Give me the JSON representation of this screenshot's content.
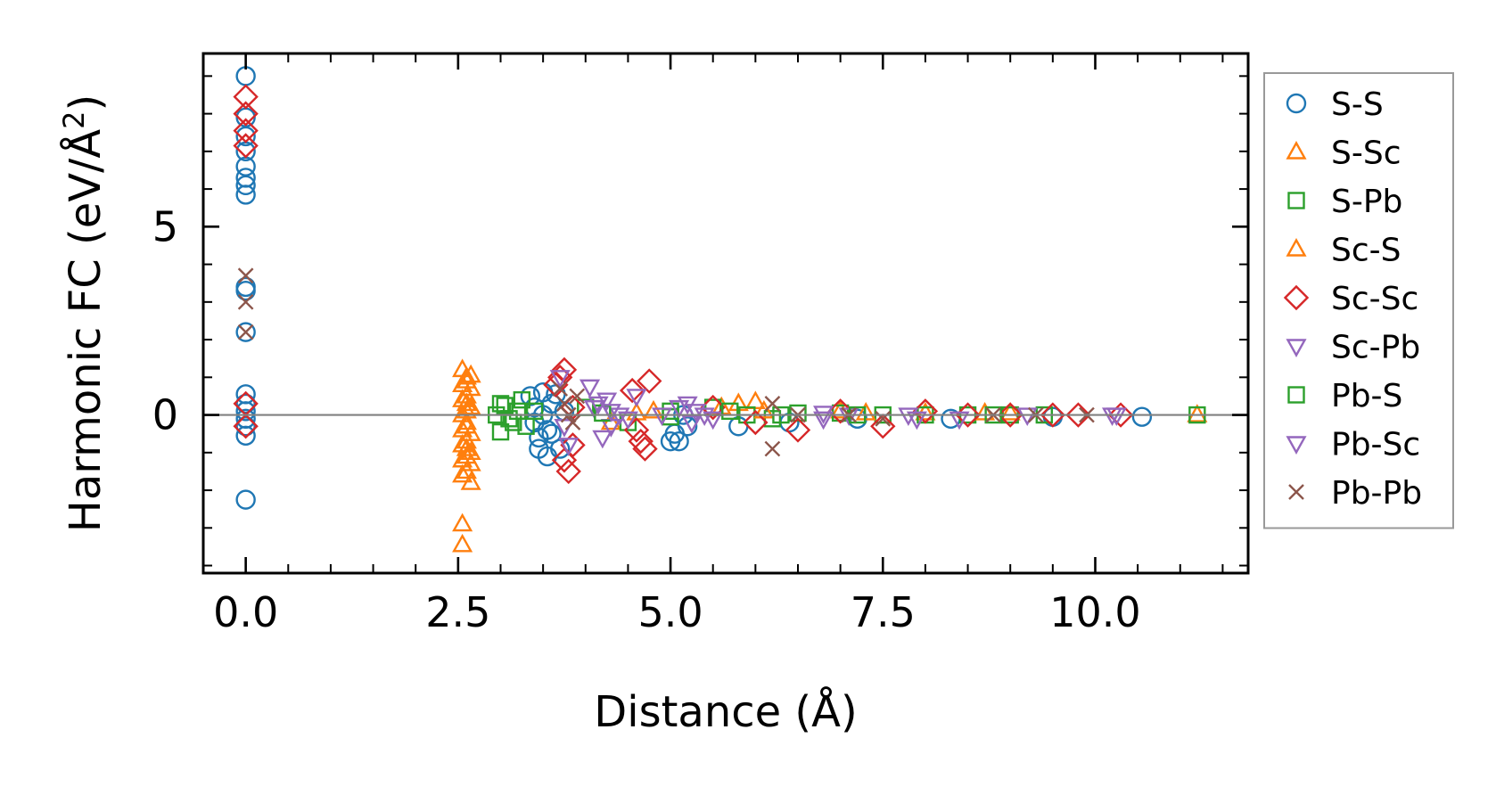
{
  "chart_data": {
    "type": "scatter",
    "title": "",
    "xlabel": "Distance (Å)",
    "ylabel": "Harmonic FC (eV/Å²)",
    "ylabel_parts": {
      "main": "Harmonic FC (eV/Å",
      "sup": "2",
      "close": ")"
    },
    "xlim": [
      -0.5,
      11.8
    ],
    "ylim": [
      -4.2,
      9.6
    ],
    "x_ticks": [
      0.0,
      2.5,
      5.0,
      7.5,
      10.0
    ],
    "x_tick_labels": [
      "0.0",
      "2.5",
      "5.0",
      "7.5",
      "10.0"
    ],
    "y_ticks": [
      0,
      5
    ],
    "y_tick_labels": [
      "0",
      "5"
    ],
    "reference_line": {
      "y": 0,
      "color": "#808080"
    },
    "legend_position": "right-outside",
    "series": [
      {
        "name": "S-S",
        "marker": "circle",
        "color": "#1f77b4",
        "points": [
          [
            0,
            9.0
          ],
          [
            0,
            7.9
          ],
          [
            0,
            7.4
          ],
          [
            0,
            7.0
          ],
          [
            0,
            6.6
          ],
          [
            0,
            6.3
          ],
          [
            0,
            6.1
          ],
          [
            0,
            5.85
          ],
          [
            0,
            3.4
          ],
          [
            0,
            3.3
          ],
          [
            0,
            2.2
          ],
          [
            0,
            0.55
          ],
          [
            0,
            0.3
          ],
          [
            0,
            0.1
          ],
          [
            0,
            -0.1
          ],
          [
            0,
            -0.3
          ],
          [
            0,
            -0.55
          ],
          [
            0,
            -2.25
          ],
          [
            3.35,
            0.5
          ],
          [
            3.4,
            0.2
          ],
          [
            3.4,
            -0.2
          ],
          [
            3.45,
            -0.6
          ],
          [
            3.45,
            -0.9
          ],
          [
            3.5,
            0.6
          ],
          [
            3.5,
            0.0
          ],
          [
            3.55,
            -0.4
          ],
          [
            3.55,
            -1.1
          ],
          [
            3.6,
            0.3
          ],
          [
            3.6,
            -0.5
          ],
          [
            3.65,
            0.55
          ],
          [
            3.7,
            -0.9
          ],
          [
            3.75,
            0.1
          ],
          [
            5.0,
            -0.7
          ],
          [
            5.05,
            -0.5
          ],
          [
            5.1,
            -0.7
          ],
          [
            5.15,
            0.0
          ],
          [
            5.2,
            -0.3
          ],
          [
            5.8,
            -0.3
          ],
          [
            6.4,
            -0.2
          ],
          [
            7.2,
            -0.1
          ],
          [
            8.3,
            -0.1
          ],
          [
            9.5,
            -0.05
          ],
          [
            10.55,
            -0.05
          ]
        ]
      },
      {
        "name": "S-Sc",
        "marker": "triangle-up",
        "color": "#ff7f0e",
        "points": [
          [
            2.55,
            1.2
          ],
          [
            2.55,
            0.8
          ],
          [
            2.55,
            0.4
          ],
          [
            2.55,
            0.0
          ],
          [
            2.55,
            -0.4
          ],
          [
            2.55,
            -0.8
          ],
          [
            2.55,
            -1.2
          ],
          [
            2.55,
            -1.6
          ],
          [
            2.55,
            -2.9
          ],
          [
            2.55,
            -3.45
          ],
          [
            2.6,
            1.0
          ],
          [
            2.6,
            0.5
          ],
          [
            2.6,
            0.1
          ],
          [
            2.6,
            -0.3
          ],
          [
            2.6,
            -0.7
          ],
          [
            2.6,
            -1.1
          ],
          [
            2.6,
            -1.5
          ],
          [
            2.65,
            0.7
          ],
          [
            2.65,
            0.2
          ],
          [
            2.65,
            -0.5
          ],
          [
            2.65,
            -1.3
          ],
          [
            2.65,
            -1.8
          ],
          [
            4.3,
            -0.2
          ],
          [
            4.8,
            0.1
          ],
          [
            5.6,
            0.2
          ],
          [
            5.8,
            0.3
          ],
          [
            6.0,
            0.35
          ],
          [
            7.0,
            0.1
          ],
          [
            8.0,
            0.05
          ],
          [
            9.0,
            0.05
          ],
          [
            11.2,
            0.0
          ]
        ]
      },
      {
        "name": "S-Pb",
        "marker": "square",
        "color": "#2ca02c",
        "points": [
          [
            2.95,
            0.0
          ],
          [
            3.0,
            -0.45
          ],
          [
            3.05,
            0.25
          ],
          [
            3.15,
            -0.2
          ],
          [
            3.25,
            0.4
          ],
          [
            3.3,
            -0.3
          ],
          [
            3.4,
            0.1
          ],
          [
            4.0,
            0.2
          ],
          [
            4.5,
            -0.2
          ],
          [
            5.0,
            0.1
          ],
          [
            5.5,
            0.2
          ],
          [
            5.9,
            0.0
          ],
          [
            6.2,
            -0.1
          ],
          [
            6.5,
            0.05
          ],
          [
            7.0,
            0.05
          ],
          [
            7.5,
            0.0
          ],
          [
            8.0,
            0.0
          ],
          [
            8.5,
            0.0
          ],
          [
            9.0,
            0.0
          ],
          [
            9.4,
            0.0
          ],
          [
            11.2,
            0.0
          ]
        ]
      },
      {
        "name": "Sc-S",
        "marker": "triangle-up",
        "color": "#ff7f0e",
        "points": [
          [
            2.6,
            0.9
          ],
          [
            2.6,
            -0.9
          ],
          [
            2.65,
            1.05
          ],
          [
            2.65,
            -1.0
          ],
          [
            2.6,
            0.3
          ],
          [
            2.6,
            -0.2
          ],
          [
            4.6,
            0.05
          ],
          [
            6.1,
            0.1
          ],
          [
            7.3,
            0.05
          ],
          [
            8.7,
            0.05
          ]
        ]
      },
      {
        "name": "Sc-Sc",
        "marker": "diamond",
        "color": "#d62728",
        "points": [
          [
            0,
            8.45
          ],
          [
            0,
            8.0
          ],
          [
            0,
            7.55
          ],
          [
            0,
            7.15
          ],
          [
            0,
            0.3
          ],
          [
            0,
            -0.3
          ],
          [
            3.65,
            0.8
          ],
          [
            3.7,
            1.0
          ],
          [
            3.75,
            1.2
          ],
          [
            3.75,
            -1.2
          ],
          [
            3.8,
            -1.5
          ],
          [
            3.85,
            0.2
          ],
          [
            3.85,
            -0.8
          ],
          [
            4.55,
            0.65
          ],
          [
            4.6,
            -0.4
          ],
          [
            4.65,
            -0.7
          ],
          [
            4.7,
            -0.9
          ],
          [
            4.75,
            0.9
          ],
          [
            5.5,
            0.2
          ],
          [
            6.0,
            -0.2
          ],
          [
            6.5,
            -0.4
          ],
          [
            7.0,
            0.1
          ],
          [
            7.5,
            -0.3
          ],
          [
            8.0,
            0.1
          ],
          [
            8.5,
            0.0
          ],
          [
            9.0,
            0.0
          ],
          [
            9.5,
            0.0
          ],
          [
            9.8,
            0.0
          ],
          [
            10.3,
            0.0
          ]
        ]
      },
      {
        "name": "Sc-Pb",
        "marker": "triangle-down",
        "color": "#9467bd",
        "points": [
          [
            3.7,
            1.0
          ],
          [
            3.75,
            -0.3
          ],
          [
            3.8,
            -0.8
          ],
          [
            4.05,
            0.75
          ],
          [
            4.1,
            0.2
          ],
          [
            4.2,
            -0.6
          ],
          [
            4.25,
            0.4
          ],
          [
            4.3,
            -0.3
          ],
          [
            4.4,
            0.0
          ],
          [
            4.6,
            0.5
          ],
          [
            5.2,
            0.3
          ],
          [
            5.3,
            0.1
          ],
          [
            5.5,
            -0.1
          ],
          [
            6.8,
            -0.1
          ],
          [
            7.1,
            0.0
          ],
          [
            7.9,
            -0.1
          ],
          [
            8.4,
            -0.1
          ],
          [
            9.2,
            0.0
          ],
          [
            10.25,
            0.0
          ]
        ]
      },
      {
        "name": "Pb-S",
        "marker": "square",
        "color": "#2ca02c",
        "points": [
          [
            3.0,
            0.3
          ],
          [
            3.1,
            -0.1
          ],
          [
            3.2,
            0.1
          ],
          [
            4.2,
            0.05
          ],
          [
            5.0,
            -0.05
          ],
          [
            5.7,
            0.1
          ],
          [
            6.3,
            0.0
          ],
          [
            7.2,
            0.0
          ],
          [
            8.8,
            0.0
          ]
        ]
      },
      {
        "name": "Pb-Sc",
        "marker": "triangle-down",
        "color": "#9467bd",
        "points": [
          [
            4.15,
            0.3
          ],
          [
            4.3,
            0.1
          ],
          [
            4.5,
            -0.1
          ],
          [
            4.9,
            0.0
          ],
          [
            5.1,
            0.2
          ],
          [
            5.25,
            -0.2
          ],
          [
            5.4,
            0.0
          ],
          [
            6.8,
            0.05
          ],
          [
            7.8,
            0.0
          ],
          [
            10.2,
            0.0
          ]
        ]
      },
      {
        "name": "Pb-Pb",
        "marker": "x",
        "color": "#8c564b",
        "points": [
          [
            0,
            3.7
          ],
          [
            0,
            3.0
          ],
          [
            0,
            2.2
          ],
          [
            3.7,
            0.7
          ],
          [
            3.75,
            0.3
          ],
          [
            3.8,
            0.0
          ],
          [
            3.85,
            -0.2
          ],
          [
            3.9,
            0.5
          ],
          [
            6.2,
            0.3
          ],
          [
            6.2,
            -0.9
          ],
          [
            6.5,
            0.0
          ],
          [
            7.1,
            0.0
          ],
          [
            7.5,
            -0.1
          ],
          [
            8.8,
            0.0
          ],
          [
            9.3,
            0.0
          ],
          [
            9.9,
            0.0
          ]
        ]
      }
    ]
  }
}
